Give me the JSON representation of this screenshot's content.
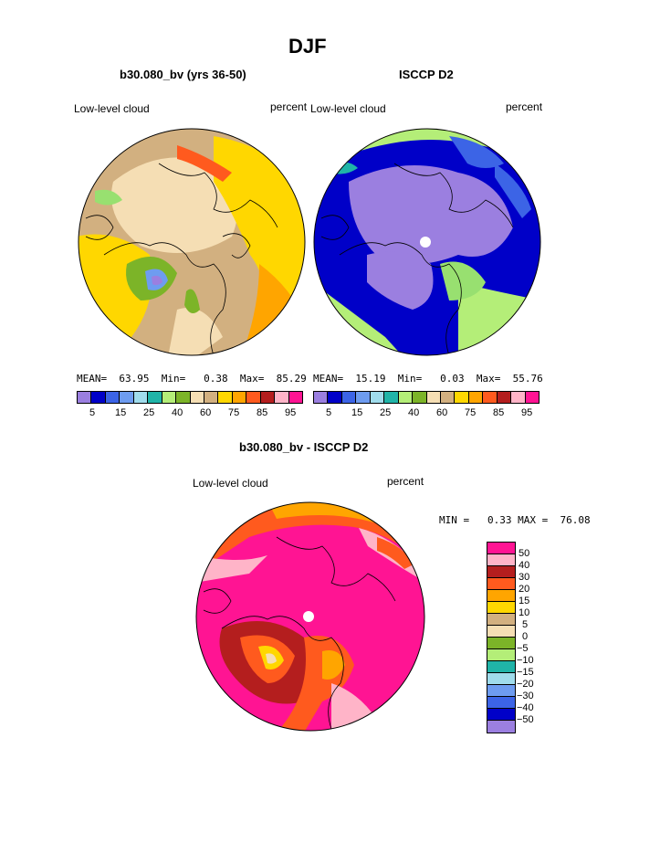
{
  "page": {
    "title": "DJF",
    "diff_title": "b30.080_bv - ISCCP D2"
  },
  "chart_data": [
    {
      "type": "heatmap",
      "projection": "north polar stereographic",
      "title": "b30.080_bv (yrs 36-50)",
      "left_label": "Low-level cloud",
      "right_label": "percent",
      "stats": {
        "mean_label": "MEAN=",
        "mean": "63.95",
        "min_label": "Min=",
        "min": "0.38",
        "max_label": "Max=",
        "max": "85.29"
      },
      "colorbar_ticks": [
        "5",
        "15",
        "25",
        "40",
        "60",
        "75",
        "85",
        "95"
      ],
      "palette": [
        "#9b7fe0",
        "#0000c8",
        "#3c64e6",
        "#6e9cf0",
        "#a0dcec",
        "#20b4a8",
        "#98e070",
        "#7cb428",
        "#f5deb4",
        "#d2b080",
        "#ffd700",
        "#ffa500",
        "#ff5a1e",
        "#b41e1e",
        "#ffb4c8",
        "#ff1493"
      ]
    },
    {
      "type": "heatmap",
      "projection": "north polar stereographic",
      "title": "ISCCP D2",
      "left_label": "Low-level cloud",
      "right_label": "percent",
      "stats": {
        "mean_label": "MEAN=",
        "mean": "15.19",
        "min_label": "Min=",
        "min": "0.03",
        "max_label": "Max=",
        "max": "55.76"
      },
      "colorbar_ticks": [
        "5",
        "15",
        "25",
        "40",
        "60",
        "75",
        "85",
        "95"
      ]
    },
    {
      "type": "heatmap",
      "projection": "north polar stereographic",
      "title": "b30.080_bv - ISCCP D2",
      "left_label": "Low-level cloud",
      "right_label": "percent",
      "stats": {
        "min_label": "MIN =",
        "min": "0.33",
        "max_label": "MAX =",
        "max": "76.08"
      },
      "colorbar_levels": [
        "50",
        "40",
        "30",
        "20",
        "15",
        "10",
        "5",
        "0",
        "−5",
        "−10",
        "−15",
        "−20",
        "−30",
        "−40",
        "−50"
      ],
      "palette": [
        "#ff1493",
        "#ffb4c8",
        "#b41e1e",
        "#ff5a1e",
        "#ffa500",
        "#ffd700",
        "#d2b080",
        "#f5deb4",
        "#7cb428",
        "#b4ee78",
        "#20b4a8",
        "#a0dcec",
        "#6e9cf0",
        "#3c64e6",
        "#0000c8",
        "#9b7fe0"
      ]
    }
  ]
}
